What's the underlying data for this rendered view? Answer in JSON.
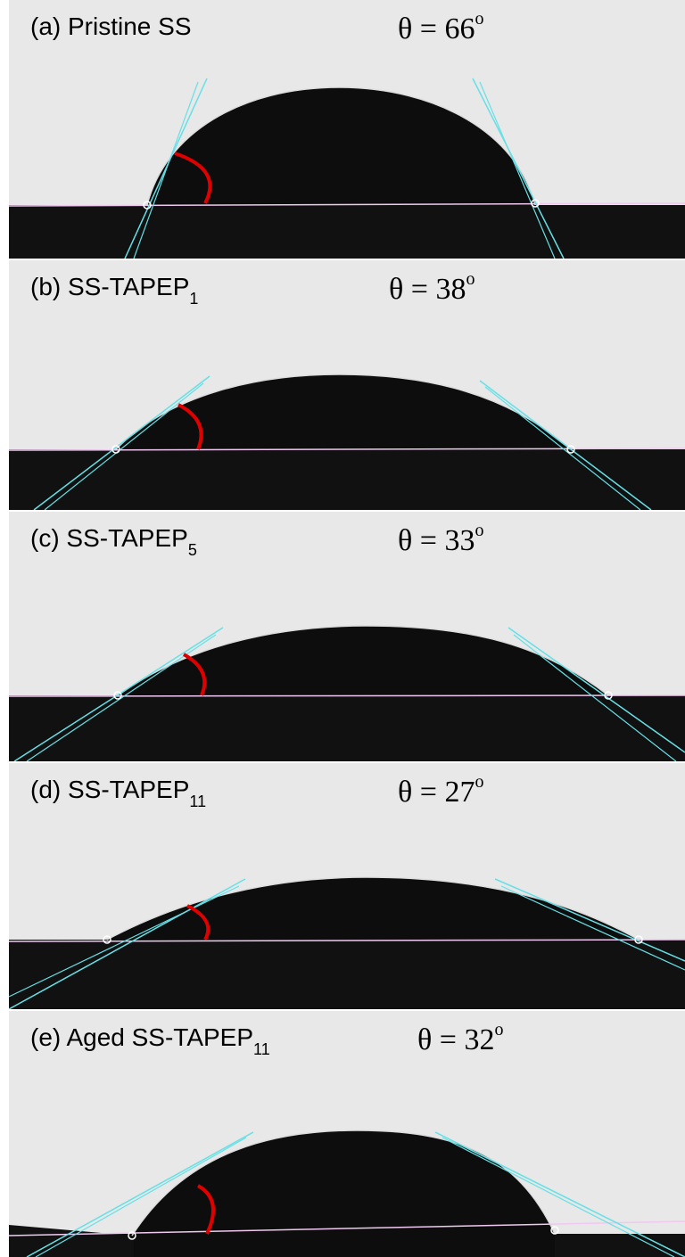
{
  "panels": [
    {
      "id": "a",
      "label": "(a) Pristine SS",
      "subscript": "",
      "theta_symbol": "θ",
      "eq": " = ",
      "angle": "66",
      "deg": "o",
      "contact_angle_deg": 66
    },
    {
      "id": "b",
      "label": "(b) SS-TAPEP",
      "subscript": "1",
      "theta_symbol": "θ",
      "eq": " = ",
      "angle": "38",
      "deg": "o",
      "contact_angle_deg": 38
    },
    {
      "id": "c",
      "label": "(c) SS-TAPEP",
      "subscript": "5",
      "theta_symbol": "θ",
      "eq": " = ",
      "angle": "33",
      "deg": "o",
      "contact_angle_deg": 33
    },
    {
      "id": "d",
      "label": "(d) SS-TAPEP",
      "subscript": "11",
      "theta_symbol": "θ",
      "eq": " = ",
      "angle": "27",
      "deg": "o",
      "contact_angle_deg": 27
    },
    {
      "id": "e",
      "label": "(e) Aged SS-TAPEP",
      "subscript": "11",
      "theta_symbol": "θ",
      "eq": " = ",
      "angle": "32",
      "deg": "o",
      "contact_angle_deg": 32
    }
  ],
  "colors": {
    "background_light": "#e6e6e6",
    "substrate": "#111111",
    "droplet": "#0d0d0d",
    "tangent": "#66e0e6",
    "baseline": "#f0c8f0",
    "angle_arc": "#e00000"
  }
}
